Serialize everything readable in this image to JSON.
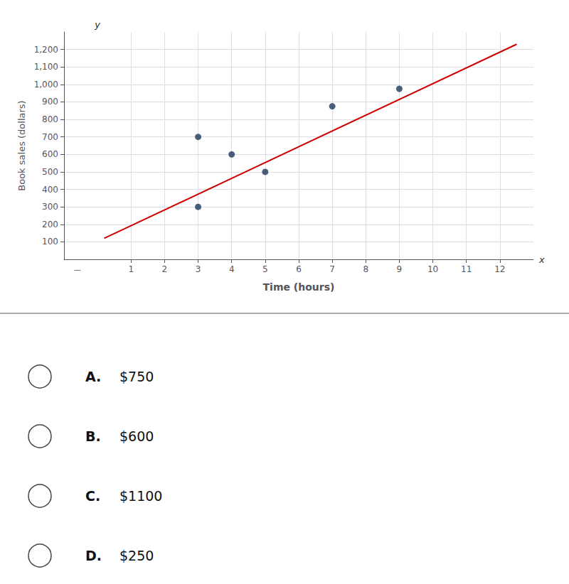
{
  "chart_data": {
    "type": "scatter",
    "xlabel": "Time (hours)",
    "ylabel": "Book sales (dollars)",
    "series": [
      {
        "type": "scatter",
        "color": "#1e3a5a",
        "x": [
          3,
          3,
          4,
          5,
          7,
          9
        ],
        "values": [
          300,
          700,
          600,
          500,
          875,
          975
        ]
      },
      {
        "type": "line",
        "color": "#cc0000",
        "x": [
          0.2,
          12.5
        ],
        "values": [
          120,
          1230
        ]
      }
    ],
    "xlim": [
      -1.0,
      13.0
    ],
    "ylim": [
      0,
      1300
    ],
    "xticks": [
      1,
      2,
      3,
      4,
      5,
      6,
      7,
      8,
      9,
      10,
      11,
      12
    ],
    "yticks": [
      100,
      200,
      300,
      400,
      500,
      600,
      700,
      800,
      900,
      1000,
      1100,
      1200
    ],
    "grid": true,
    "annotations": [
      "x",
      "y",
      "—"
    ],
    "options": [
      {
        "label": "A.",
        "text": "$750"
      },
      {
        "label": "B.",
        "text": "$600"
      },
      {
        "label": "C.",
        "text": "$1100"
      },
      {
        "label": "D.",
        "text": "$250"
      }
    ]
  }
}
